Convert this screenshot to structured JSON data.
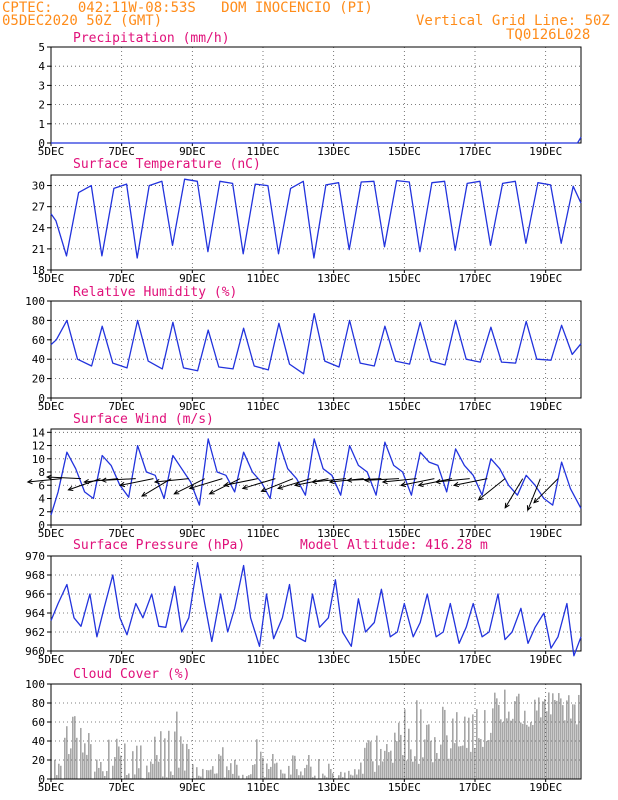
{
  "header": {
    "line1": "CPTEC:   042:11W-08:53S   DOM INOCENCIO (PI)",
    "line2": "05DEC2020 50Z (GMT)",
    "grid_note": "Vertical Grid Line: 50Z",
    "code": "TQ0126L028"
  },
  "colors": {
    "header": "#ff8c1a",
    "title": "#e0107a",
    "line": "#2233dd",
    "cloud": "#a6a6a6",
    "arrow": "#000000"
  },
  "x_ticks": [
    "5DEC",
    "7DEC",
    "9DEC",
    "11DEC",
    "13DEC",
    "15DEC",
    "17DEC",
    "19DEC"
  ],
  "x_tick_days": [
    5,
    7,
    9,
    11,
    13,
    15,
    17,
    19
  ],
  "x_range_days": [
    5,
    20
  ],
  "chart_data": [
    {
      "type": "line",
      "title": "Precipitation (mm/h)",
      "ylim": [
        0,
        5
      ],
      "yticks": [
        "0",
        "1",
        "2",
        "3",
        "4",
        "5"
      ],
      "x": [
        5.0,
        8.0,
        11.0,
        14.0,
        17.0,
        19.9,
        20.0
      ],
      "values": [
        0,
        0,
        0,
        0,
        0,
        0,
        0.3
      ]
    },
    {
      "type": "line",
      "title": "Surface Temperature (nC)",
      "ylim": [
        18,
        31.5
      ],
      "yticks": [
        "18",
        "21",
        "24",
        "27",
        "30"
      ],
      "x": [
        5.0,
        5.14,
        5.44,
        5.78,
        6.14,
        6.44,
        6.78,
        7.14,
        7.44,
        7.78,
        8.14,
        8.44,
        8.78,
        9.14,
        9.44,
        9.78,
        10.14,
        10.44,
        10.78,
        11.14,
        11.44,
        11.78,
        12.14,
        12.44,
        12.78,
        13.14,
        13.44,
        13.78,
        14.14,
        14.44,
        14.78,
        15.14,
        15.44,
        15.78,
        16.14,
        16.44,
        16.78,
        17.14,
        17.44,
        17.78,
        18.14,
        18.44,
        18.78,
        19.14,
        19.44,
        19.78,
        20.0
      ],
      "values": [
        26.0,
        25.0,
        20.0,
        29.0,
        30.0,
        20.0,
        29.6,
        30.2,
        19.7,
        30.0,
        30.6,
        21.5,
        30.9,
        30.6,
        20.6,
        30.6,
        30.3,
        20.3,
        30.2,
        30.0,
        20.3,
        29.6,
        30.6,
        19.7,
        30.1,
        30.4,
        20.9,
        30.5,
        30.6,
        21.3,
        30.7,
        30.5,
        20.6,
        30.4,
        30.6,
        20.8,
        30.3,
        30.6,
        21.5,
        30.3,
        30.6,
        21.8,
        30.4,
        30.1,
        21.8,
        29.9,
        27.5
      ]
    },
    {
      "type": "line",
      "title": "Relative Humidity (%)",
      "ylim": [
        0,
        100
      ],
      "yticks": [
        "0",
        "20",
        "40",
        "60",
        "80",
        "100"
      ],
      "x": [
        5.0,
        5.15,
        5.45,
        5.75,
        6.15,
        6.45,
        6.75,
        7.15,
        7.45,
        7.75,
        8.15,
        8.45,
        8.75,
        9.15,
        9.45,
        9.75,
        10.15,
        10.45,
        10.75,
        11.15,
        11.45,
        11.75,
        12.15,
        12.45,
        12.75,
        13.15,
        13.45,
        13.75,
        14.15,
        14.45,
        14.75,
        15.15,
        15.45,
        15.75,
        16.15,
        16.45,
        16.75,
        17.15,
        17.45,
        17.75,
        18.15,
        18.45,
        18.75,
        19.15,
        19.45,
        19.75,
        20.0
      ],
      "values": [
        55,
        60,
        80,
        40,
        33,
        74,
        36,
        31,
        80,
        38,
        30,
        78,
        31,
        28,
        70,
        32,
        30,
        72,
        33,
        29,
        77,
        35,
        25,
        87,
        38,
        32,
        80,
        36,
        33,
        74,
        38,
        35,
        78,
        38,
        34,
        80,
        40,
        37,
        73,
        37,
        36,
        79,
        40,
        39,
        75,
        45,
        56
      ]
    },
    {
      "type": "line",
      "title": "Surface Wind (m/s)",
      "ylim": [
        0,
        14.5
      ],
      "yticks": [
        "0",
        "2",
        "4",
        "6",
        "8",
        "10",
        "12",
        "14"
      ],
      "arrow_level_ms": 7,
      "x": [
        5.0,
        5.2,
        5.45,
        5.7,
        5.95,
        6.2,
        6.45,
        6.7,
        6.95,
        7.2,
        7.45,
        7.7,
        7.95,
        8.2,
        8.45,
        8.7,
        8.95,
        9.2,
        9.45,
        9.7,
        9.95,
        10.2,
        10.45,
        10.7,
        10.95,
        11.2,
        11.45,
        11.7,
        11.95,
        12.2,
        12.45,
        12.7,
        12.95,
        13.2,
        13.45,
        13.7,
        13.95,
        14.2,
        14.45,
        14.7,
        14.95,
        15.2,
        15.45,
        15.7,
        15.95,
        16.2,
        16.45,
        16.7,
        16.95,
        17.2,
        17.45,
        17.7,
        17.95,
        18.2,
        18.45,
        18.7,
        18.95,
        19.2,
        19.45,
        19.7,
        20.0
      ],
      "values": [
        1.5,
        5.0,
        11.0,
        8.5,
        5.0,
        4.0,
        10.5,
        9.0,
        6.0,
        4.2,
        12.0,
        8.0,
        7.5,
        4.0,
        10.5,
        8.5,
        6.5,
        3.0,
        13.0,
        8.0,
        7.5,
        5.0,
        11.0,
        8.0,
        6.5,
        4.0,
        12.5,
        8.5,
        7.0,
        4.5,
        13.0,
        8.5,
        7.5,
        4.5,
        12.0,
        9.0,
        8.0,
        4.5,
        12.5,
        9.0,
        8.0,
        4.5,
        11.0,
        9.5,
        9.0,
        5.0,
        11.5,
        9.0,
        7.5,
        4.5,
        10.0,
        8.5,
        6.0,
        4.5,
        7.5,
        6.0,
        4.0,
        3.0,
        9.5,
        5.5,
        2.5
      ],
      "arrows": [
        {
          "day": 5.3,
          "u": -1,
          "v": -0.1
        },
        {
          "day": 5.85,
          "u": -1,
          "v": 0.05
        },
        {
          "day": 6.4,
          "u": -1,
          "v": -0.35
        },
        {
          "day": 6.9,
          "u": -1,
          "v": -0.1
        },
        {
          "day": 7.4,
          "u": -1,
          "v": -0.05
        },
        {
          "day": 7.9,
          "u": -1,
          "v": -0.2
        },
        {
          "day": 8.4,
          "u": -1,
          "v": -0.6
        },
        {
          "day": 8.9,
          "u": -1,
          "v": -0.1
        },
        {
          "day": 9.35,
          "u": -1,
          "v": -0.5
        },
        {
          "day": 9.85,
          "u": -1,
          "v": -0.3
        },
        {
          "day": 10.35,
          "u": -1,
          "v": -0.5
        },
        {
          "day": 10.85,
          "u": -1,
          "v": -0.2
        },
        {
          "day": 11.35,
          "u": -1,
          "v": -0.3
        },
        {
          "day": 11.85,
          "u": -1,
          "v": -0.4
        },
        {
          "day": 12.35,
          "u": -1,
          "v": -0.3
        },
        {
          "day": 12.85,
          "u": -1,
          "v": -0.2
        },
        {
          "day": 13.35,
          "u": -1,
          "v": -0.1
        },
        {
          "day": 13.85,
          "u": -1,
          "v": -0.1
        },
        {
          "day": 14.35,
          "u": -1,
          "v": -0.05
        },
        {
          "day": 14.85,
          "u": -1,
          "v": -0.05
        },
        {
          "day": 15.35,
          "u": -1,
          "v": -0.1
        },
        {
          "day": 15.85,
          "u": -1,
          "v": -0.2
        },
        {
          "day": 16.35,
          "u": -1,
          "v": -0.2
        },
        {
          "day": 16.85,
          "u": -1,
          "v": -0.1
        },
        {
          "day": 17.35,
          "u": -1,
          "v": -0.2
        },
        {
          "day": 17.85,
          "u": -1,
          "v": -0.8
        },
        {
          "day": 18.35,
          "u": -0.6,
          "v": -1
        },
        {
          "day": 18.85,
          "u": -0.4,
          "v": -1
        },
        {
          "day": 19.35,
          "u": -0.7,
          "v": -0.7
        }
      ]
    },
    {
      "type": "line",
      "title": "Surface Pressure (hPa)",
      "subtitle": "Model Altitude: 416.28 m",
      "ylim": [
        960,
        970
      ],
      "yticks": [
        "960",
        "962",
        "964",
        "966",
        "968",
        "970"
      ],
      "x": [
        5.0,
        5.2,
        5.45,
        5.65,
        5.85,
        6.1,
        6.3,
        6.5,
        6.75,
        6.95,
        7.15,
        7.4,
        7.6,
        7.85,
        8.05,
        8.25,
        8.5,
        8.7,
        8.9,
        9.15,
        9.35,
        9.55,
        9.8,
        10.0,
        10.2,
        10.45,
        10.65,
        10.9,
        11.1,
        11.3,
        11.55,
        11.75,
        11.95,
        12.2,
        12.4,
        12.6,
        12.85,
        13.05,
        13.25,
        13.5,
        13.7,
        13.9,
        14.15,
        14.35,
        14.6,
        14.8,
        15.0,
        15.25,
        15.45,
        15.65,
        15.9,
        16.1,
        16.3,
        16.55,
        16.75,
        16.95,
        17.2,
        17.4,
        17.65,
        17.85,
        18.05,
        18.3,
        18.5,
        18.7,
        18.95,
        19.15,
        19.35,
        19.6,
        19.8,
        20.0
      ],
      "values": [
        963.2,
        965.0,
        967.0,
        963.5,
        962.6,
        966.0,
        961.5,
        964.5,
        968.0,
        963.5,
        961.7,
        965.0,
        963.5,
        966.0,
        962.6,
        962.5,
        966.8,
        962.0,
        963.5,
        969.3,
        965.0,
        961.0,
        966.0,
        962.0,
        964.5,
        969.0,
        963.5,
        960.5,
        966.0,
        961.3,
        963.5,
        967.0,
        961.5,
        961.0,
        966.0,
        962.5,
        963.5,
        967.5,
        962.0,
        960.5,
        965.5,
        962.0,
        963.0,
        966.5,
        961.5,
        962.0,
        965.0,
        961.5,
        963.0,
        966.0,
        961.5,
        962.0,
        965.0,
        960.8,
        962.5,
        965.0,
        961.5,
        962.0,
        966.0,
        961.2,
        962.0,
        964.5,
        960.8,
        962.5,
        964.0,
        960.3,
        961.5,
        965.0,
        959.5,
        961.5
      ]
    },
    {
      "type": "bar",
      "title": "Cloud Cover (%)",
      "ylim": [
        0,
        100
      ],
      "yticks": [
        "0",
        "20",
        "40",
        "60",
        "80",
        "100"
      ],
      "profile_days": [
        5.0,
        5.3,
        5.5,
        6.0,
        6.3,
        6.8,
        7.3,
        7.8,
        8.2,
        8.6,
        9.0,
        9.5,
        9.8,
        10.2,
        10.5,
        11.0,
        11.5,
        12.0,
        12.5,
        13.0,
        13.5,
        14.0,
        14.3,
        14.6,
        15.0,
        15.3,
        15.6,
        16.0,
        16.3,
        16.6,
        17.0,
        17.3,
        17.6,
        18.0,
        18.5,
        19.0,
        19.5,
        20.0
      ],
      "profile_max": [
        15,
        45,
        75,
        55,
        40,
        50,
        35,
        40,
        60,
        75,
        15,
        10,
        35,
        20,
        45,
        40,
        20,
        30,
        25,
        15,
        10,
        45,
        55,
        40,
        80,
        90,
        70,
        85,
        80,
        75,
        75,
        85,
        95,
        95,
        90,
        95,
        90,
        90
      ],
      "profile_min": [
        0,
        0,
        0,
        0,
        0,
        0,
        0,
        0,
        0,
        0,
        0,
        0,
        0,
        0,
        0,
        0,
        0,
        0,
        0,
        0,
        0,
        5,
        10,
        10,
        20,
        15,
        10,
        15,
        20,
        25,
        30,
        35,
        55,
        60,
        55,
        60,
        60,
        55
      ]
    }
  ]
}
